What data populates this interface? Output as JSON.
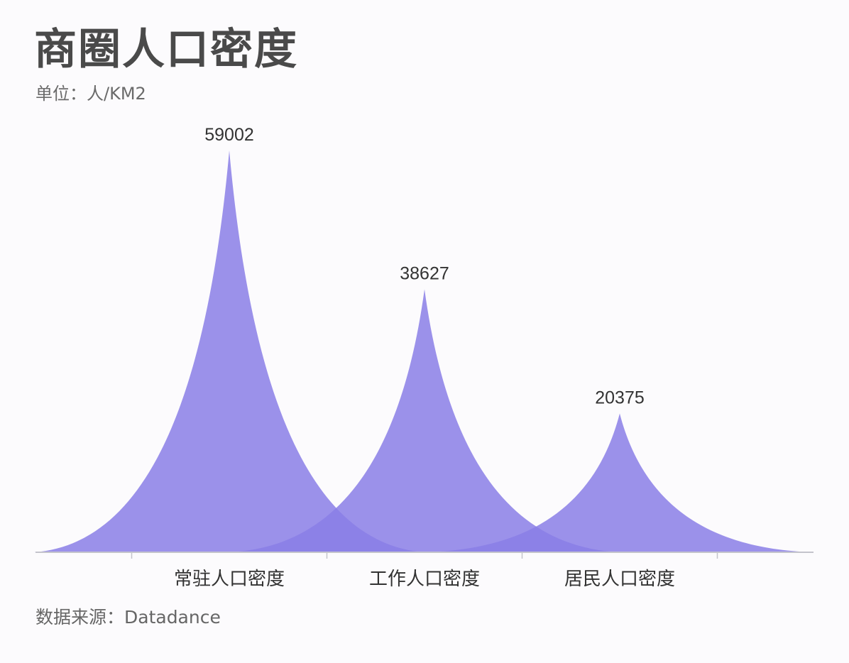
{
  "title": "商圈人口密度",
  "unit": "单位：人/KM2",
  "source": "数据来源：Datadance",
  "colors": {
    "peak": "#8a7ee6",
    "axis": "#c4c4cc",
    "overlap": "#7264e0"
  },
  "chart_data": {
    "type": "bar",
    "subtype": "peak",
    "categories": [
      "常驻人口密度",
      "工作人口密度",
      "居民人口密度"
    ],
    "values": [
      59002,
      38627,
      20375
    ],
    "data_labels": [
      "59002",
      "38627",
      "20375"
    ],
    "ylim": [
      0,
      59002
    ],
    "grid": false,
    "legend": "none"
  }
}
